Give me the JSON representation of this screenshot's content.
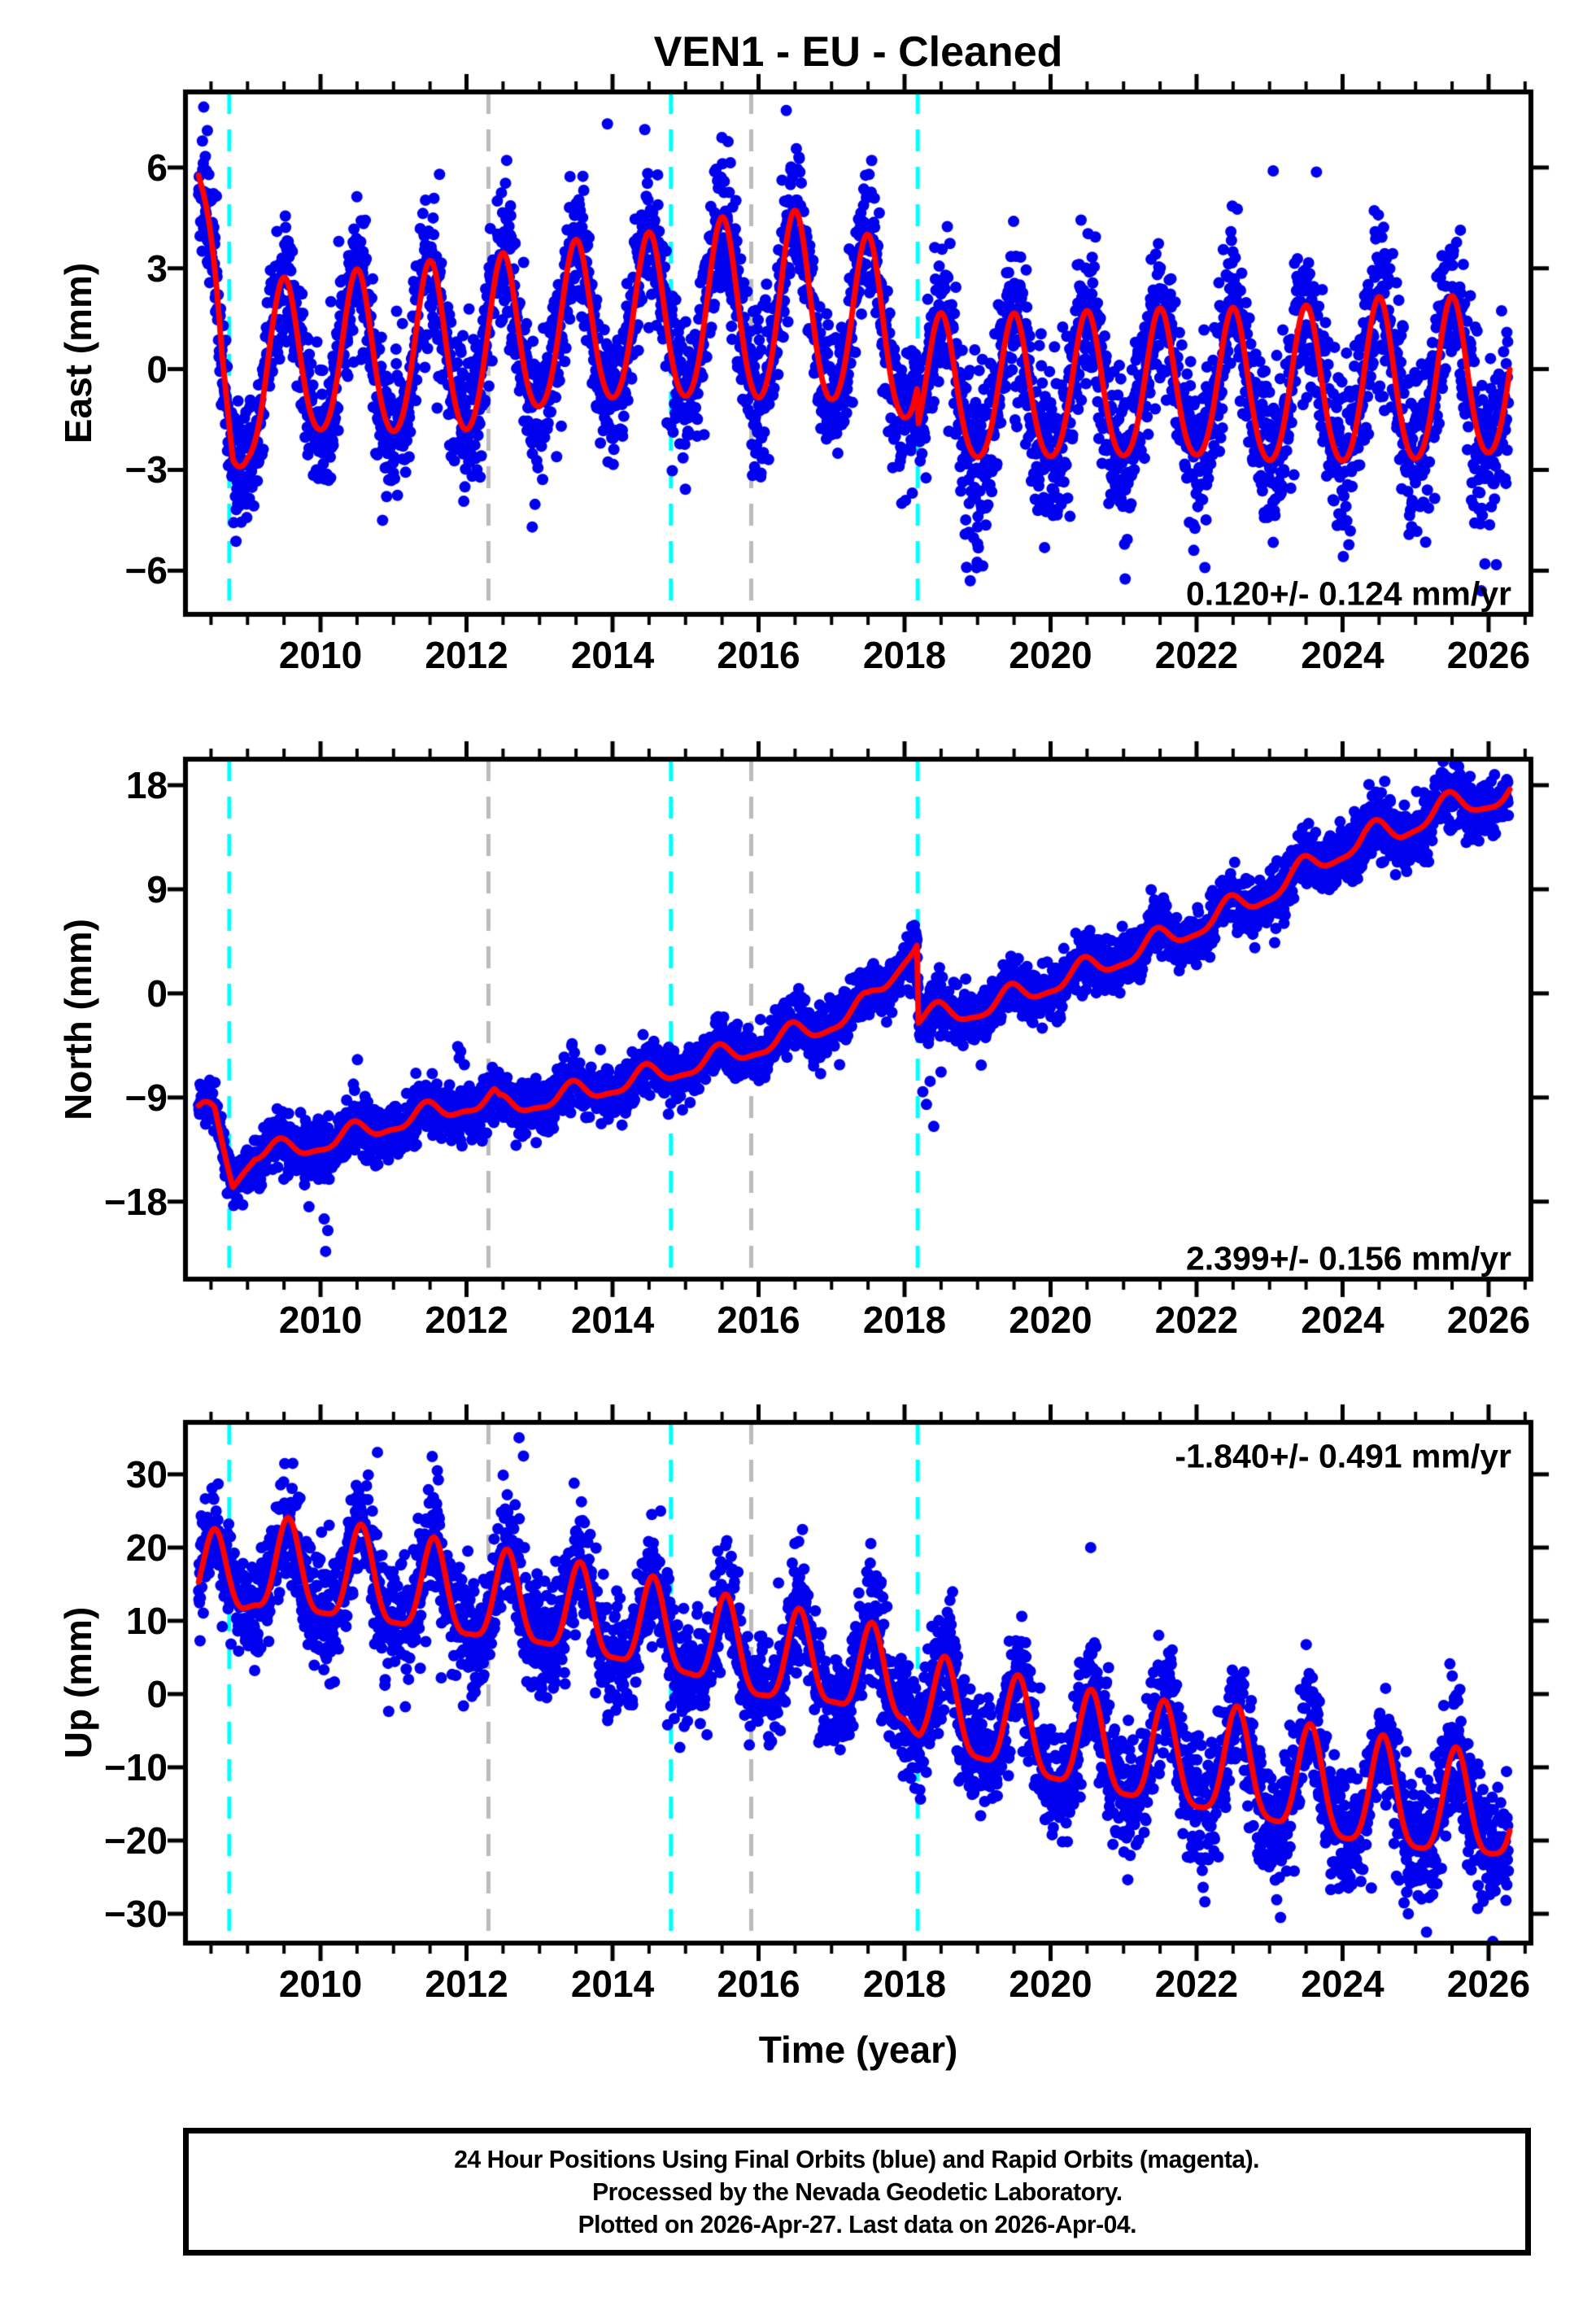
{
  "title": "VEN1  - EU - Cleaned",
  "colors": {
    "points_blue": "#0000EE",
    "model_red": "#FF0000",
    "ref_cyan": "#00FFFF",
    "ref_gray": "#BBBBBB",
    "frame_black": "#000000"
  },
  "x_axis": {
    "label": "Time (year)",
    "range": [
      2008.15,
      2026.58
    ],
    "major_ticks": [
      2010,
      2012,
      2014,
      2016,
      2018,
      2020,
      2022,
      2024,
      2026
    ],
    "tick_labels": [
      "2010",
      "2012",
      "2014",
      "2016",
      "2018",
      "2020",
      "2022",
      "2024",
      "2026"
    ],
    "minor_step": 0.5
  },
  "data_span": [
    2008.33,
    2026.27
  ],
  "reference_lines": [
    {
      "year": 2008.75,
      "color": "#00FFFF",
      "name": "cyan-dashed-line-1"
    },
    {
      "year": 2012.3,
      "color": "#BBBBBB",
      "name": "gray-dashed-line-1"
    },
    {
      "year": 2014.8,
      "color": "#00FFFF",
      "name": "cyan-dashed-line-2"
    },
    {
      "year": 2015.9,
      "color": "#BBBBBB",
      "name": "gray-dashed-line-2"
    },
    {
      "year": 2018.18,
      "color": "#00FFFF",
      "name": "cyan-dashed-line-3"
    }
  ],
  "caption": {
    "lines": [
      "24 Hour Positions Using Final Orbits (blue) and Rapid Orbits (magenta).",
      "Processed by the Nevada Geodetic Laboratory.",
      "Plotted on 2026-Apr-27. Last data on 2026-Apr-04."
    ]
  },
  "chart_data": [
    {
      "type": "scatter",
      "component": "East",
      "ylabel": "East (mm)",
      "ylim": [
        -7.3,
        8.25
      ],
      "yticks": [
        {
          "v": 6,
          "label": "6"
        },
        {
          "v": 3,
          "label": "3"
        },
        {
          "v": 0,
          "label": "0"
        },
        {
          "v": -3,
          "label": "−3"
        },
        {
          "v": -6,
          "label": "−6"
        }
      ],
      "rate_label": "0.120+/- 0.124 mm/yr",
      "rate_value_mm_yr": 0.12,
      "rate_sigma_mm_yr": 0.124,
      "rate_pos": "bottom-right",
      "series": [
        {
          "name": "daily-position-final-orbits",
          "style": "blue-dots"
        },
        {
          "name": "model-fit",
          "style": "red-line"
        }
      ],
      "model": {
        "phase": 0.5,
        "semi": 0.25,
        "base": [
          [
            2008.32,
            5.5
          ],
          [
            2008.5,
            2.2
          ],
          [
            2008.65,
            -0.5
          ],
          [
            2008.8,
            -1.9
          ],
          [
            2009.0,
            -0.6
          ],
          [
            2009.3,
            0.1
          ],
          [
            2010,
            0.3
          ],
          [
            2011,
            0.35
          ],
          [
            2012,
            0.55
          ],
          [
            2012.7,
            0.8
          ],
          [
            2013.3,
            1.2
          ],
          [
            2014,
            1.3
          ],
          [
            2015,
            1.45
          ],
          [
            2016,
            1.75
          ],
          [
            2017,
            1.6
          ],
          [
            2017.8,
            0.9
          ],
          [
            2018.17,
            0.6
          ],
          [
            2018.19,
            -0.65
          ],
          [
            2019,
            -0.75
          ],
          [
            2020,
            -0.7
          ],
          [
            2021,
            -0.65
          ],
          [
            2022,
            -0.6
          ],
          [
            2023,
            -0.7
          ],
          [
            2024,
            -0.6
          ],
          [
            2025,
            -0.5
          ],
          [
            2026.5,
            -0.35
          ]
        ],
        "amp": [
          [
            2008.32,
            1.2
          ],
          [
            2009,
            2.3
          ],
          [
            2010,
            2.35
          ],
          [
            2011,
            2.45
          ],
          [
            2012,
            2.6
          ],
          [
            2013,
            2.35
          ],
          [
            2014,
            2.4
          ],
          [
            2015,
            2.5
          ],
          [
            2016,
            2.85
          ],
          [
            2017,
            2.75
          ],
          [
            2018.1,
            2.4
          ],
          [
            2018.2,
            2.1
          ],
          [
            2020,
            2.15
          ],
          [
            2022,
            2.2
          ],
          [
            2023.5,
            2.3
          ],
          [
            2024.5,
            2.45
          ],
          [
            2026.5,
            2.3
          ]
        ]
      },
      "scatter": {
        "seed": 101,
        "step": 0.004,
        "gap_prob": 0.1,
        "sigma": [
          [
            2008.4,
            0.8
          ],
          [
            2010,
            1.1
          ],
          [
            2012,
            1.1
          ],
          [
            2014,
            1.0
          ],
          [
            2016,
            1.1
          ],
          [
            2018,
            0.95
          ],
          [
            2019,
            1.3
          ],
          [
            2021,
            1.2
          ],
          [
            2023,
            1.2
          ],
          [
            2025,
            1.4
          ],
          [
            2026.5,
            1.3
          ]
        ]
      },
      "outliers": [
        [
          2008.4,
          7.8
        ],
        [
          2008.45,
          7.1
        ],
        [
          2013.93,
          7.3
        ],
        [
          2016.38,
          7.7
        ],
        [
          2023.05,
          5.9
        ],
        [
          2010.85,
          -4.5
        ],
        [
          2012.9,
          -4.7
        ],
        [
          2018.85,
          -5.9
        ],
        [
          2018.9,
          -6.3
        ],
        [
          2019.0,
          -5.2
        ],
        [
          2025.9,
          -6.6
        ],
        [
          2025.95,
          -5.8
        ]
      ]
    },
    {
      "type": "scatter",
      "component": "North",
      "ylabel": "North (mm)",
      "ylim": [
        -24.7,
        20.25
      ],
      "yticks": [
        {
          "v": 18,
          "label": "18"
        },
        {
          "v": 9,
          "label": "9"
        },
        {
          "v": 0,
          "label": "0"
        },
        {
          "v": -9,
          "label": "−9"
        },
        {
          "v": -18,
          "label": "−18"
        }
      ],
      "rate_label": "2.399+/- 0.156 mm/yr",
      "rate_value_mm_yr": 2.399,
      "rate_sigma_mm_yr": 0.156,
      "rate_pos": "bottom-right",
      "series": [
        {
          "name": "daily-position-final-orbits",
          "style": "blue-dots"
        },
        {
          "name": "model-fit",
          "style": "red-line"
        }
      ],
      "model": {
        "phase": 0.45,
        "semi": 0.3,
        "base": [
          [
            2008.32,
            -10.3
          ],
          [
            2008.55,
            -10.6
          ],
          [
            2008.8,
            -16.2
          ],
          [
            2009.1,
            -13.8
          ],
          [
            2009.5,
            -13.6
          ],
          [
            2010,
            -13.0
          ],
          [
            2011,
            -11.2
          ],
          [
            2012.0,
            -9.6
          ],
          [
            2012.38,
            -9.2
          ],
          [
            2012.45,
            -9.9
          ],
          [
            2013,
            -9.3
          ],
          [
            2014,
            -8.0
          ],
          [
            2015,
            -6.4
          ],
          [
            2016,
            -4.6
          ],
          [
            2016.9,
            -2.8
          ],
          [
            2017.5,
            -1.0
          ],
          [
            2018.0,
            3.2
          ],
          [
            2018.17,
            4.6
          ],
          [
            2018.19,
            -2.2
          ],
          [
            2019,
            -1.4
          ],
          [
            2020,
            0.8
          ],
          [
            2021,
            3.2
          ],
          [
            2022,
            5.8
          ],
          [
            2023,
            8.8
          ],
          [
            2023.8,
            11.8
          ],
          [
            2024.3,
            13.4
          ],
          [
            2024.8,
            14.2
          ],
          [
            2025.3,
            15.8
          ],
          [
            2025.8,
            16.6
          ],
          [
            2026.4,
            17.3
          ]
        ],
        "amp": [
          [
            2008.32,
            0.8
          ],
          [
            2012,
            0.85
          ],
          [
            2016,
            0.9
          ],
          [
            2018.2,
            0.9
          ],
          [
            2022,
            1.0
          ],
          [
            2026.5,
            1.1
          ]
        ]
      },
      "scatter": {
        "seed": 202,
        "step": 0.004,
        "gap_prob": 0.1,
        "sigma": [
          [
            2008.4,
            0.9
          ],
          [
            2010,
            1.3
          ],
          [
            2012,
            1.2
          ],
          [
            2014,
            1.2
          ],
          [
            2016,
            1.1
          ],
          [
            2018,
            1.1
          ],
          [
            2020,
            1.2
          ],
          [
            2022,
            1.2
          ],
          [
            2024,
            1.3
          ],
          [
            2026.5,
            1.2
          ]
        ]
      },
      "outliers": [
        [
          2010.05,
          -19.5
        ],
        [
          2010.07,
          -22.3
        ],
        [
          2010.1,
          -20.5
        ],
        [
          2011.88,
          -4.6
        ],
        [
          2011.92,
          -5.0
        ],
        [
          2011.9,
          -5.6
        ],
        [
          2018.25,
          -8.5
        ],
        [
          2018.3,
          -9.6
        ],
        [
          2018.35,
          -7.6
        ],
        [
          2018.4,
          -11.5
        ],
        [
          2018.5,
          -6.8
        ],
        [
          2019.05,
          -6.2
        ]
      ]
    },
    {
      "type": "scatter",
      "component": "Up",
      "ylabel": "Up (mm)",
      "ylim": [
        -34.0,
        37.1
      ],
      "yticks": [
        {
          "v": 30,
          "label": "30"
        },
        {
          "v": 20,
          "label": "20"
        },
        {
          "v": 10,
          "label": "10"
        },
        {
          "v": 0,
          "label": "0"
        },
        {
          "v": -10,
          "label": "−10"
        },
        {
          "v": -20,
          "label": "−20"
        },
        {
          "v": -30,
          "label": "−30"
        }
      ],
      "rate_label": "-1.840+/- 0.491 mm/yr",
      "rate_value_mm_yr": -1.84,
      "rate_sigma_mm_yr": 0.491,
      "rate_pos": "top-right",
      "series": [
        {
          "name": "daily-position-final-orbits",
          "style": "blue-dots"
        },
        {
          "name": "model-fit",
          "style": "red-line"
        }
      ],
      "model": {
        "phase": 0.555,
        "semi": 1.6,
        "base": [
          [
            2008.32,
            16.0
          ],
          [
            2008.7,
            15.0
          ],
          [
            2009.1,
            16.5
          ],
          [
            2010,
            16.0
          ],
          [
            2011,
            14.5
          ],
          [
            2012,
            12.8
          ],
          [
            2013,
            11.5
          ],
          [
            2014,
            9.5
          ],
          [
            2015,
            7.5
          ],
          [
            2016,
            4.5
          ],
          [
            2017,
            3.5
          ],
          [
            2018,
            1.0
          ],
          [
            2018.2,
            -1.5
          ],
          [
            2019,
            -4.0
          ],
          [
            2020,
            -6.5
          ],
          [
            2021,
            -8.5
          ],
          [
            2022,
            -10.0
          ],
          [
            2022.7,
            -10.5
          ],
          [
            2023.5,
            -13.0
          ],
          [
            2024.5,
            -14.5
          ],
          [
            2025.5,
            -16.0
          ],
          [
            2026.4,
            -16.5
          ]
        ],
        "amp": [
          [
            2008.4,
            5.5
          ],
          [
            2010,
            6.5
          ],
          [
            2013,
            6.0
          ],
          [
            2016,
            6.2
          ],
          [
            2018,
            6.0
          ],
          [
            2020,
            6.5
          ],
          [
            2022,
            7.0
          ],
          [
            2024,
            7.5
          ],
          [
            2026.5,
            7.0
          ]
        ]
      },
      "scatter": {
        "seed": 303,
        "step": 0.004,
        "gap_prob": 0.1,
        "sigma": [
          [
            2008.4,
            3.2
          ],
          [
            2010,
            4.0
          ],
          [
            2012,
            4.2
          ],
          [
            2014,
            3.8
          ],
          [
            2016,
            3.8
          ],
          [
            2018,
            3.8
          ],
          [
            2020,
            4.2
          ],
          [
            2022,
            4.2
          ],
          [
            2024,
            4.2
          ],
          [
            2026.5,
            4.5
          ]
        ]
      },
      "outliers": [
        [
          2009.62,
          31.5
        ],
        [
          2010.78,
          33.0
        ],
        [
          2011.6,
          30.5
        ],
        [
          2012.72,
          35.0
        ],
        [
          2012.78,
          32.5
        ],
        [
          2020.55,
          20.0
        ],
        [
          2023.15,
          -30.5
        ],
        [
          2025.15,
          -32.5
        ],
        [
          2024.9,
          -30.0
        ]
      ]
    }
  ]
}
